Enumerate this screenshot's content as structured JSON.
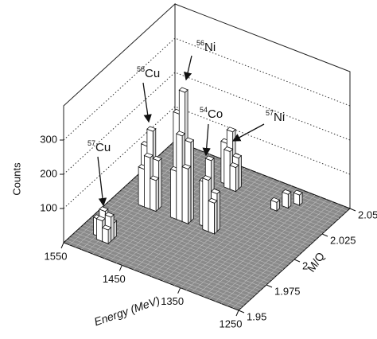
{
  "chart_data": {
    "type": "bar3d",
    "zlabel": "Counts",
    "xlabel": "Energy (MeV)",
    "ylabel": "M/Q",
    "xlim": [
      1550,
      1250
    ],
    "ylim": [
      1.95,
      2.05
    ],
    "zlim": [
      0,
      400
    ],
    "xticks": [
      1550,
      1450,
      1350,
      1250
    ],
    "yticks": [
      1.95,
      1.975,
      2,
      2.025,
      2.05
    ],
    "zticks": [
      100,
      200,
      300
    ],
    "grid": true,
    "color": "#ffffff",
    "floor_color": "#8a8a8a",
    "annotations": [
      {
        "mass": "56",
        "symbol": "Ni"
      },
      {
        "mass": "58",
        "symbol": "Cu"
      },
      {
        "mass": "54",
        "symbol": "Co"
      },
      {
        "mass": "57",
        "symbol": "Ni"
      },
      {
        "mass": "57",
        "symbol": "Cu"
      }
    ],
    "x": [
      1500,
      1510,
      1500,
      1510,
      1520,
      1500,
      1510,
      1485,
      1495,
      1505,
      1485,
      1495,
      1505,
      1495,
      1505,
      1430,
      1440,
      1450,
      1430,
      1440,
      1450,
      1440,
      1450,
      1385,
      1395,
      1405,
      1395,
      1385,
      1395,
      1415,
      1425,
      1425,
      1435,
      1425,
      1415,
      1330,
      1320,
      1340
    ],
    "y": [
      1.9625,
      1.9625,
      1.965,
      1.965,
      1.965,
      1.9675,
      1.9675,
      1.9975,
      1.9975,
      1.9975,
      2.0,
      2.0,
      2.0,
      2.0025,
      2.0025,
      1.9975,
      1.9975,
      1.9975,
      2.0,
      2.0,
      2.0,
      2.0025,
      2.0025,
      1.9975,
      1.9975,
      2.0,
      2.0,
      2.0,
      2.0025,
      2.0325,
      2.0325,
      2.035,
      2.035,
      2.0375,
      2.035,
      2.035,
      2.04,
      2.03
    ],
    "values": [
      40,
      60,
      70,
      80,
      50,
      45,
      55,
      90,
      150,
      110,
      140,
      220,
      170,
      120,
      80,
      160,
      250,
      140,
      230,
      370,
      300,
      200,
      120,
      90,
      150,
      130,
      200,
      110,
      100,
      70,
      110,
      160,
      120,
      80,
      90,
      40,
      30,
      25
    ]
  }
}
